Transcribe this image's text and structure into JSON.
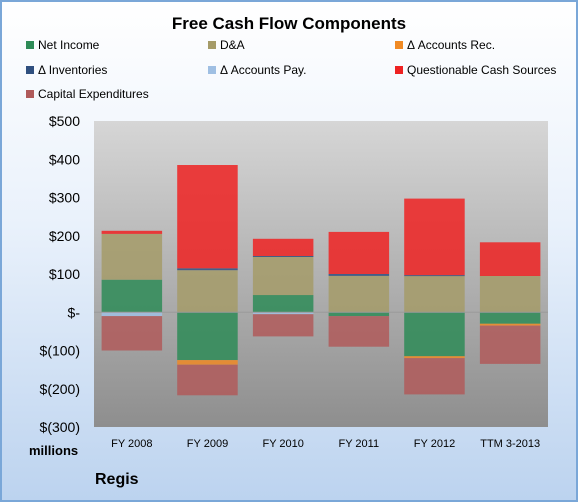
{
  "chart_data": {
    "type": "bar",
    "stacked": true,
    "title": "Free Cash Flow Components",
    "categories": [
      "FY 2008",
      "FY 2009",
      "FY 2010",
      "FY 2011",
      "FY 2012",
      "TTM 3-2013"
    ],
    "series": [
      {
        "name": "Net Income",
        "color": "#2e8b57",
        "values": [
          85,
          -125,
          45,
          -10,
          -115,
          -30
        ]
      },
      {
        "name": "D&A",
        "color": "#a59b68",
        "values": [
          120,
          110,
          100,
          95,
          95,
          95
        ]
      },
      {
        "name": "Δ Accounts Rec.",
        "color": "#f08a24",
        "values": [
          0,
          -12,
          0,
          0,
          -5,
          -5
        ]
      },
      {
        "name": "Δ Inventories",
        "color": "#2f4f7f",
        "values": [
          0,
          5,
          2,
          5,
          2,
          0
        ]
      },
      {
        "name": "Δ Accounts Pay.",
        "color": "#9fbfe3",
        "values": [
          -10,
          0,
          -5,
          0,
          0,
          0
        ]
      },
      {
        "name": "Questionable Cash Sources",
        "color": "#ee2222",
        "values": [
          8,
          270,
          45,
          110,
          200,
          88
        ]
      },
      {
        "name": "Capital Expenditures",
        "color": "#b05a5a",
        "values": [
          -90,
          -80,
          -58,
          -80,
          -95,
          -100
        ]
      }
    ],
    "ylim": [
      -300,
      500
    ],
    "yticks": [
      500,
      400,
      300,
      200,
      100,
      0,
      -100,
      -200,
      -300
    ],
    "ytick_labels": [
      "$500",
      "$400",
      "$300",
      "$200",
      "$100",
      "$-",
      "$(100)",
      "$(200)",
      "$(300)"
    ],
    "ylabel": "millions",
    "legend_position": "top",
    "grid": false
  },
  "company": "Regis",
  "units_label": "millions"
}
